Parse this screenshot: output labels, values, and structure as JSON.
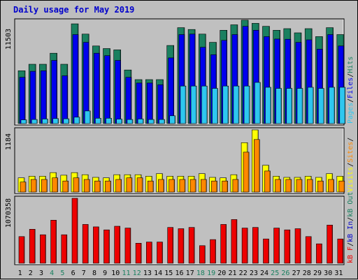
{
  "title": "Daily usage for May 2019",
  "colors": {
    "background": "#bebebe",
    "panel": "#c0c0c0",
    "title": "#0000cc",
    "hits": "#1a8060",
    "files": "#0000ee",
    "pages": "#2ec7f0",
    "visits": "#ffff00",
    "sites": "#ff8800",
    "kbin": "#0000cc",
    "kbout": "#1a8060",
    "kbf": "#ee0000",
    "day_weekend": "#1a8060",
    "day_weekday": "#000000"
  },
  "chart_data": {
    "type": "bar",
    "title": "Daily usage for May 2019",
    "categories": [
      "1",
      "2",
      "3",
      "4",
      "5",
      "6",
      "7",
      "8",
      "9",
      "10",
      "11",
      "12",
      "13",
      "14",
      "15",
      "16",
      "17",
      "18",
      "19",
      "20",
      "21",
      "22",
      "23",
      "24",
      "25",
      "26",
      "27",
      "28",
      "29",
      "30",
      "31"
    ],
    "weekend_days": [
      "4",
      "5",
      "11",
      "12",
      "18",
      "19",
      "25",
      "26"
    ],
    "panels": [
      {
        "id": "hits",
        "max_label": "11503",
        "ylim": [
          0,
          11503
        ],
        "legend": [
          {
            "text": "Pages",
            "color": "#2ec7f0"
          },
          {
            "text": "/",
            "color": "#000000"
          },
          {
            "text": "Files",
            "color": "#0000ee"
          },
          {
            "text": "/",
            "color": "#000000"
          },
          {
            "text": "Hits",
            "color": "#1a8060"
          }
        ],
        "series": [
          {
            "name": "Hits",
            "color": "#1a8060",
            "values": [
              5920,
              6650,
              6650,
              7890,
              6650,
              11180,
              10030,
              8700,
              8410,
              8260,
              6010,
              4930,
              4930,
              4930,
              8760,
              10750,
              10550,
              10030,
              9110,
              10460,
              11070,
              11600,
              11240,
              10900,
              10460,
              10640,
              10170,
              10640,
              9750,
              10750,
              9980
            ]
          },
          {
            "name": "Files",
            "color": "#0000ee",
            "values": [
              5190,
              5860,
              5920,
              7080,
              5360,
              9980,
              9110,
              7890,
              7610,
              7080,
              5190,
              4550,
              4550,
              4350,
              7360,
              9980,
              10030,
              8550,
              7720,
              9330,
              9980,
              10900,
              10460,
              9750,
              9480,
              9450,
              9110,
              9390,
              8340,
              9980,
              8700
            ]
          },
          {
            "name": "Pages",
            "color": "#2ec7f0",
            "values": [
              420,
              460,
              520,
              560,
              540,
              720,
              1420,
              600,
              600,
              500,
              460,
              520,
              460,
              460,
              880,
              4210,
              4210,
              4210,
              3940,
              4210,
              4210,
              4210,
              4620,
              4070,
              3940,
              3940,
              3940,
              4070,
              3940,
              4070,
              4070
            ]
          }
        ]
      },
      {
        "id": "visits",
        "max_label": "1184",
        "ylim": [
          0,
          1184
        ],
        "legend": [
          {
            "text": "Visits",
            "color": "#ffff00"
          },
          {
            "text": "/",
            "color": "#000000"
          },
          {
            "text": "Sites",
            "color": "#ff8800"
          },
          {
            "text": "/",
            "color": "#000000"
          }
        ],
        "series": [
          {
            "name": "Visits",
            "color": "#ffff00",
            "values": [
              270,
              300,
              300,
              370,
              320,
              370,
              330,
              280,
              270,
              330,
              330,
              330,
              300,
              350,
              300,
              300,
              300,
              350,
              280,
              270,
              330,
              940,
              1184,
              510,
              300,
              280,
              280,
              300,
              280,
              350,
              300
            ]
          },
          {
            "name": "Sites",
            "color": "#ff8800",
            "values": [
              190,
              240,
              240,
              270,
              210,
              270,
              240,
              210,
              210,
              240,
              270,
              270,
              210,
              240,
              240,
              240,
              240,
              240,
              210,
              210,
              240,
              760,
              1000,
              400,
              240,
              240,
              240,
              240,
              210,
              240,
              210
            ]
          }
        ]
      },
      {
        "id": "kbytes",
        "max_label": "1070358",
        "ylim": [
          0,
          1070358
        ],
        "legend": [
          {
            "text": "kB F",
            "color": "#ee0000"
          },
          {
            "text": "/",
            "color": "#000000"
          },
          {
            "text": "kB In",
            "color": "#0000cc"
          },
          {
            "text": "/",
            "color": "#000000"
          },
          {
            "text": "kB Out",
            "color": "#1a8060"
          }
        ],
        "series": [
          {
            "name": "kB F",
            "color": "#ee0000",
            "values": [
              440000,
              560000,
              470000,
              710000,
              470000,
              1070358,
              640000,
              600000,
              550000,
              610000,
              580000,
              330000,
              350000,
              350000,
              590000,
              570000,
              590000,
              290000,
              390000,
              640000,
              720000,
              580000,
              590000,
              400000,
              580000,
              550000,
              570000,
              440000,
              320000,
              630000,
              400000
            ]
          }
        ]
      }
    ]
  }
}
